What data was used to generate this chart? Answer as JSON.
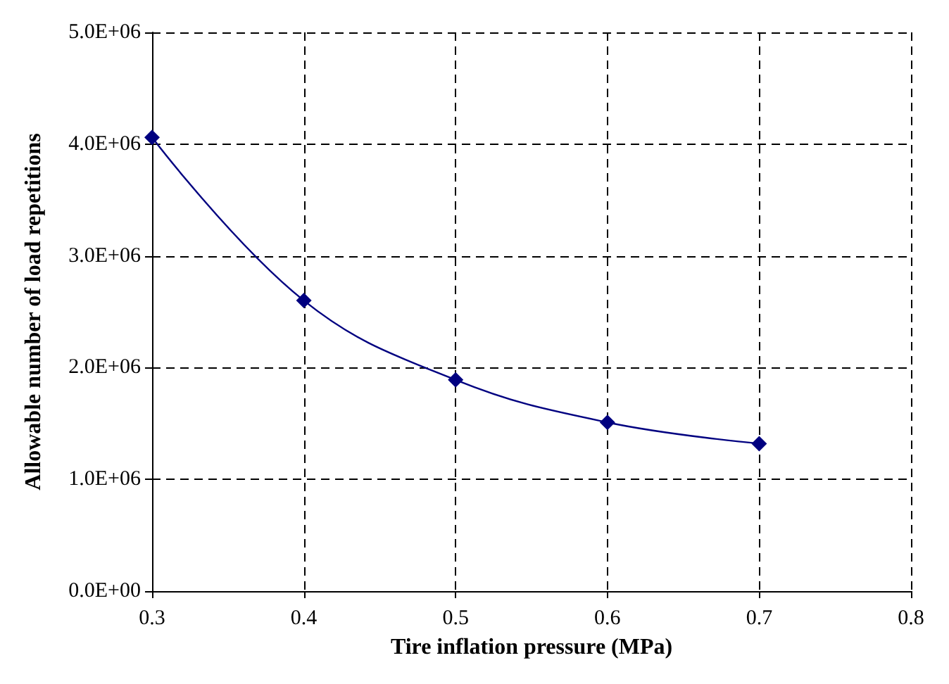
{
  "chart_data": {
    "type": "line",
    "xlabel": "Tire inflation pressure (MPa)",
    "ylabel": "Allowable number of load repetitions",
    "x": [
      0.3,
      0.4,
      0.5,
      0.6,
      0.7
    ],
    "series": [
      {
        "color": "#000080",
        "values": [
          4060000,
          2600000,
          1890000,
          1510000,
          1320000
        ]
      }
    ],
    "xlim": [
      0.3,
      0.8
    ],
    "xticks": [
      {
        "value": 0.3,
        "label": "0.3"
      },
      {
        "value": 0.4,
        "label": "0.4"
      },
      {
        "value": 0.5,
        "label": "0.5"
      },
      {
        "value": 0.6,
        "label": "0.6"
      },
      {
        "value": 0.7,
        "label": "0.7"
      },
      {
        "value": 0.8,
        "label": "0.8"
      }
    ],
    "ylim": [
      0,
      5000000
    ],
    "yticks": [
      {
        "value": 0,
        "label": "0.0E+00"
      },
      {
        "value": 1000000,
        "label": "1.0E+06"
      },
      {
        "value": 2000000,
        "label": "2.0E+06"
      },
      {
        "value": 3000000,
        "label": "3.0E+06"
      },
      {
        "value": 4000000,
        "label": "4.0E+06"
      },
      {
        "value": 5000000,
        "label": "5.0E+06"
      }
    ],
    "grid": true,
    "marker": "diamond",
    "line_style": "solid"
  }
}
